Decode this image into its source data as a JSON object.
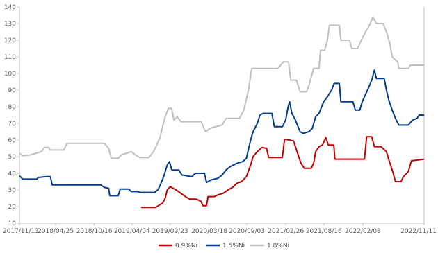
{
  "chart_data": {
    "type": "line",
    "title": "",
    "xlabel": "",
    "ylabel": "",
    "ylim": [
      10,
      140
    ],
    "yticks": [
      10,
      20,
      30,
      40,
      50,
      60,
      70,
      80,
      90,
      100,
      110,
      120,
      130,
      140
    ],
    "xlim": [
      "2017-11-13",
      "2022-11-11"
    ],
    "xticks": [
      "2017/11/13",
      "2018/04/25",
      "2018/10/16",
      "2019/04/04",
      "2019/09/23",
      "2020/03/18",
      "2020/09/03",
      "2021/02/26",
      "2021/08/16",
      "2022/02/08",
      "2022/11/11"
    ],
    "grid": false,
    "legend_position": "bottom",
    "series": [
      {
        "name": "0.9%Ni",
        "color": "#C00000",
        "points": [
          [
            "2019-05-15",
            19.5
          ],
          [
            "2019-07-20",
            19.5
          ],
          [
            "2019-08-01",
            20.5
          ],
          [
            "2019-08-20",
            22
          ],
          [
            "2019-09-01",
            25
          ],
          [
            "2019-09-10",
            30
          ],
          [
            "2019-09-23",
            32
          ],
          [
            "2019-10-20",
            30
          ],
          [
            "2019-12-01",
            26
          ],
          [
            "2019-12-20",
            24.5
          ],
          [
            "2020-01-20",
            24.5
          ],
          [
            "2020-02-10",
            23
          ],
          [
            "2020-02-18",
            20.5
          ],
          [
            "2020-03-05",
            20.5
          ],
          [
            "2020-03-12",
            26
          ],
          [
            "2020-04-10",
            26
          ],
          [
            "2020-04-25",
            27
          ],
          [
            "2020-05-20",
            28
          ],
          [
            "2020-06-10",
            30
          ],
          [
            "2020-06-30",
            31.5
          ],
          [
            "2020-07-20",
            34
          ],
          [
            "2020-08-10",
            35
          ],
          [
            "2020-09-01",
            38
          ],
          [
            "2020-09-20",
            45
          ],
          [
            "2020-10-01",
            50
          ],
          [
            "2020-10-20",
            53
          ],
          [
            "2020-11-10",
            55.5
          ],
          [
            "2020-12-01",
            55
          ],
          [
            "2020-12-10",
            49.5
          ],
          [
            "2021-02-10",
            49.5
          ],
          [
            "2021-02-20",
            60.5
          ],
          [
            "2021-04-01",
            59.5
          ],
          [
            "2021-04-20",
            52
          ],
          [
            "2021-05-05",
            46
          ],
          [
            "2021-05-20",
            43
          ],
          [
            "2021-06-20",
            43
          ],
          [
            "2021-07-01",
            46
          ],
          [
            "2021-07-10",
            53
          ],
          [
            "2021-07-25",
            56
          ],
          [
            "2021-08-10",
            57
          ],
          [
            "2021-08-25",
            61.5
          ],
          [
            "2021-09-05",
            57
          ],
          [
            "2021-09-30",
            57
          ],
          [
            "2021-10-05",
            48.5
          ],
          [
            "2022-02-15",
            48.5
          ],
          [
            "2022-02-25",
            62
          ],
          [
            "2022-03-20",
            62
          ],
          [
            "2022-04-01",
            56
          ],
          [
            "2022-05-01",
            56
          ],
          [
            "2022-05-25",
            53
          ],
          [
            "2022-06-10",
            46
          ],
          [
            "2022-06-25",
            40
          ],
          [
            "2022-07-05",
            35
          ],
          [
            "2022-07-30",
            35
          ],
          [
            "2022-08-10",
            38
          ],
          [
            "2022-09-01",
            41
          ],
          [
            "2022-09-15",
            47.5
          ],
          [
            "2022-11-11",
            48.5
          ]
        ]
      },
      {
        "name": "1.5%Ni",
        "color": "#003A8C",
        "points": [
          [
            "2017-11-13",
            38.5
          ],
          [
            "2017-11-28",
            36.5
          ],
          [
            "2018-01-31",
            36.5
          ],
          [
            "2018-02-05",
            37.5
          ],
          [
            "2018-03-15",
            38
          ],
          [
            "2018-04-01",
            38
          ],
          [
            "2018-04-10",
            33
          ],
          [
            "2018-11-15",
            33
          ],
          [
            "2018-12-01",
            31.5
          ],
          [
            "2018-12-20",
            31
          ],
          [
            "2018-12-25",
            26.5
          ],
          [
            "2019-02-01",
            26.5
          ],
          [
            "2019-02-10",
            30.5
          ],
          [
            "2019-03-20",
            30.5
          ],
          [
            "2019-04-01",
            29
          ],
          [
            "2019-05-01",
            29
          ],
          [
            "2019-05-10",
            28.5
          ],
          [
            "2019-07-15",
            28.5
          ],
          [
            "2019-07-30",
            30
          ],
          [
            "2019-08-10",
            33
          ],
          [
            "2019-08-25",
            38
          ],
          [
            "2019-09-10",
            45
          ],
          [
            "2019-09-20",
            47
          ],
          [
            "2019-10-01",
            42
          ],
          [
            "2019-11-01",
            42
          ],
          [
            "2019-11-15",
            39
          ],
          [
            "2019-12-30",
            38
          ],
          [
            "2020-01-15",
            40
          ],
          [
            "2020-02-25",
            40
          ],
          [
            "2020-03-05",
            34.5
          ],
          [
            "2020-03-25",
            36
          ],
          [
            "2020-04-25",
            37
          ],
          [
            "2020-05-15",
            39
          ],
          [
            "2020-06-01",
            42
          ],
          [
            "2020-06-20",
            44
          ],
          [
            "2020-07-20",
            46
          ],
          [
            "2020-08-15",
            47
          ],
          [
            "2020-09-01",
            49
          ],
          [
            "2020-09-20",
            60
          ],
          [
            "2020-10-01",
            65
          ],
          [
            "2020-10-20",
            70
          ],
          [
            "2020-11-01",
            75
          ],
          [
            "2020-11-15",
            76
          ],
          [
            "2020-12-25",
            76
          ],
          [
            "2021-01-05",
            68
          ],
          [
            "2021-02-10",
            68
          ],
          [
            "2021-02-25",
            72
          ],
          [
            "2021-03-08",
            80
          ],
          [
            "2021-03-15",
            83
          ],
          [
            "2021-03-25",
            76
          ],
          [
            "2021-04-10",
            72
          ],
          [
            "2021-05-01",
            65
          ],
          [
            "2021-05-15",
            64
          ],
          [
            "2021-06-10",
            65
          ],
          [
            "2021-06-25",
            67
          ],
          [
            "2021-07-10",
            74
          ],
          [
            "2021-07-25",
            76
          ],
          [
            "2021-08-15",
            83
          ],
          [
            "2021-09-01",
            86
          ],
          [
            "2021-09-20",
            90
          ],
          [
            "2021-10-01",
            94
          ],
          [
            "2021-10-25",
            94
          ],
          [
            "2021-11-01",
            83
          ],
          [
            "2021-12-25",
            83
          ],
          [
            "2022-01-05",
            78
          ],
          [
            "2022-01-25",
            78
          ],
          [
            "2022-02-05",
            83
          ],
          [
            "2022-03-01",
            90
          ],
          [
            "2022-03-20",
            96
          ],
          [
            "2022-04-01",
            102
          ],
          [
            "2022-04-10",
            97
          ],
          [
            "2022-05-15",
            97
          ],
          [
            "2022-05-25",
            90
          ],
          [
            "2022-06-05",
            84
          ],
          [
            "2022-06-20",
            78
          ],
          [
            "2022-07-05",
            73
          ],
          [
            "2022-07-20",
            69
          ],
          [
            "2022-09-01",
            69
          ],
          [
            "2022-09-20",
            72
          ],
          [
            "2022-10-10",
            73
          ],
          [
            "2022-10-20",
            75
          ],
          [
            "2022-11-11",
            75
          ]
        ]
      },
      {
        "name": "1.8%Ni",
        "color": "#BFBFBF",
        "points": [
          [
            "2017-11-13",
            52
          ],
          [
            "2017-11-28",
            50.5
          ],
          [
            "2018-01-01",
            51
          ],
          [
            "2018-01-25",
            52
          ],
          [
            "2018-02-20",
            53
          ],
          [
            "2018-03-05",
            55.5
          ],
          [
            "2018-03-25",
            55.5
          ],
          [
            "2018-04-01",
            54
          ],
          [
            "2018-06-01",
            54
          ],
          [
            "2018-06-15",
            58
          ],
          [
            "2018-12-01",
            58
          ],
          [
            "2018-12-20",
            55
          ],
          [
            "2019-01-01",
            49
          ],
          [
            "2019-02-01",
            49
          ],
          [
            "2019-02-15",
            51
          ],
          [
            "2019-03-10",
            52
          ],
          [
            "2019-04-01",
            53
          ],
          [
            "2019-04-20",
            51
          ],
          [
            "2019-05-10",
            49.5
          ],
          [
            "2019-06-20",
            49.5
          ],
          [
            "2019-07-10",
            53
          ],
          [
            "2019-07-25",
            57
          ],
          [
            "2019-08-10",
            62
          ],
          [
            "2019-08-20",
            68
          ],
          [
            "2019-09-01",
            74
          ],
          [
            "2019-09-15",
            79
          ],
          [
            "2019-09-30",
            79
          ],
          [
            "2019-10-10",
            72
          ],
          [
            "2019-10-25",
            74
          ],
          [
            "2019-11-10",
            71
          ],
          [
            "2020-02-10",
            71
          ],
          [
            "2020-03-01",
            65
          ],
          [
            "2020-03-20",
            67
          ],
          [
            "2020-04-15",
            68
          ],
          [
            "2020-05-15",
            69
          ],
          [
            "2020-06-01",
            73
          ],
          [
            "2020-08-01",
            73
          ],
          [
            "2020-08-20",
            78
          ],
          [
            "2020-09-10",
            90
          ],
          [
            "2020-09-25",
            103
          ],
          [
            "2021-01-20",
            103
          ],
          [
            "2021-02-15",
            107
          ],
          [
            "2021-03-10",
            107
          ],
          [
            "2021-03-20",
            96
          ],
          [
            "2021-04-15",
            96
          ],
          [
            "2021-05-01",
            89
          ],
          [
            "2021-05-30",
            89
          ],
          [
            "2021-06-10",
            93
          ],
          [
            "2021-07-01",
            103
          ],
          [
            "2021-07-25",
            103
          ],
          [
            "2021-08-01",
            114
          ],
          [
            "2021-08-20",
            114
          ],
          [
            "2021-09-01",
            120
          ],
          [
            "2021-09-10",
            129
          ],
          [
            "2021-10-25",
            129
          ],
          [
            "2021-11-01",
            120
          ],
          [
            "2021-12-10",
            120
          ],
          [
            "2021-12-20",
            115
          ],
          [
            "2022-01-15",
            115
          ],
          [
            "2022-02-01",
            120
          ],
          [
            "2022-02-20",
            125
          ],
          [
            "2022-03-10",
            129
          ],
          [
            "2022-03-25",
            134
          ],
          [
            "2022-04-10",
            130
          ],
          [
            "2022-05-10",
            130
          ],
          [
            "2022-05-25",
            125
          ],
          [
            "2022-06-10",
            118
          ],
          [
            "2022-06-20",
            110
          ],
          [
            "2022-07-15",
            107
          ],
          [
            "2022-07-20",
            103
          ],
          [
            "2022-09-01",
            103
          ],
          [
            "2022-09-10",
            105
          ],
          [
            "2022-11-11",
            105
          ]
        ]
      }
    ]
  }
}
